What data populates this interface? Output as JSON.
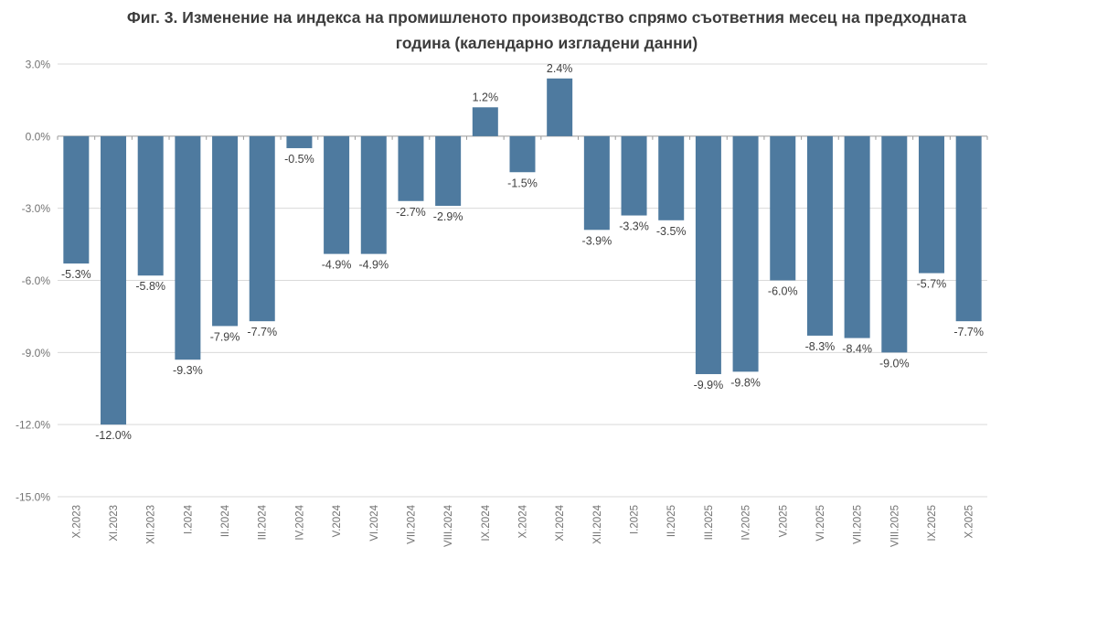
{
  "page": {
    "background": "#ffffff"
  },
  "chart_data": {
    "type": "bar",
    "title": "Фиг. 3. Изменение на индекса на промишленото производство спрямо съответния месец на предходната година (календарно изгладени данни)",
    "title_lines": [
      "Фиг. 3. Изменение на индекса на промишленото производство спрямо съответния месец на предходната",
      "година (календарно изгладени данни)"
    ],
    "categories": [
      "X.2023",
      "XI.2023",
      "XII.2023",
      "I.2024",
      "II.2024",
      "III.2024",
      "IV.2024",
      "V.2024",
      "VI.2024",
      "VII.2024",
      "VIII.2024",
      "IX.2024",
      "X.2024",
      "XI.2024",
      "XII.2024",
      "I.2025",
      "II.2025",
      "III.2025",
      "IV.2025",
      "V.2025",
      "VI.2025",
      "VII.2025",
      "VIII.2025",
      "IX.2025",
      "X.2025"
    ],
    "values": [
      -5.3,
      -12.0,
      -5.8,
      -9.3,
      -7.9,
      -7.7,
      -0.5,
      -4.9,
      -4.9,
      -2.7,
      -2.9,
      1.2,
      -1.5,
      2.4,
      -3.9,
      -3.3,
      -3.5,
      -9.9,
      -9.8,
      -6.0,
      -8.3,
      -8.4,
      -9.0,
      -5.7,
      -7.7
    ],
    "data_labels": [
      "-5.3%",
      "-12.0%",
      "-5.8%",
      "-9.3%",
      "-7.9%",
      "-7.7%",
      "-0.5%",
      "-4.9%",
      "-4.9%",
      "-2.7%",
      "-2.9%",
      "1.2%",
      "-1.5%",
      "2.4%",
      "-3.9%",
      "-3.3%",
      "-3.5%",
      "-9.9%",
      "-9.8%",
      "-6.0%",
      "-8.3%",
      "-8.4%",
      "-9.0%",
      "-5.7%",
      "-7.7%"
    ],
    "xlabel": "",
    "ylabel": "",
    "y_axis": {
      "ylim": [
        -15,
        3
      ],
      "ticks": [
        3,
        0,
        -3,
        -6,
        -9,
        -12,
        -15
      ],
      "tick_labels": [
        "3.0%",
        "0.0%",
        "-3.0%",
        "-6.0%",
        "-9.0%",
        "-12.0%",
        "-15.0%"
      ]
    },
    "grid": true,
    "legend": "none",
    "colors": {
      "bar": "#4e7a9f",
      "grid": "#d9d9d9",
      "zero_line": "#9a9a9a",
      "axis_text": "#737373",
      "data_label": "#3f3f3f",
      "title": "#3b3b3b"
    }
  }
}
